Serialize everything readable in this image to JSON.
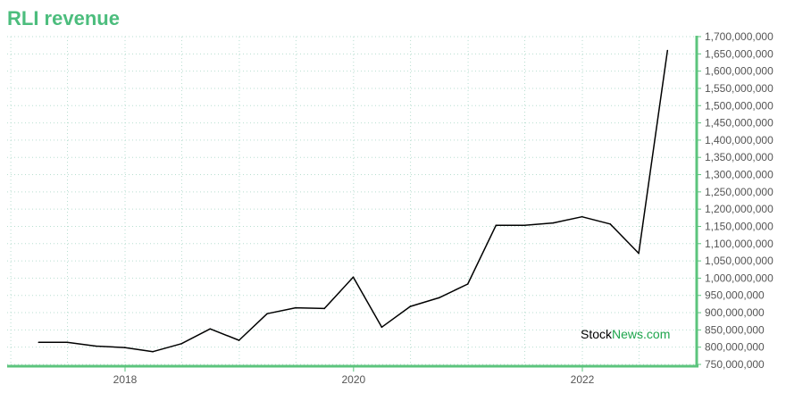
{
  "chart_data": {
    "type": "line",
    "title": "RLI revenue",
    "xlabel": "",
    "ylabel": "",
    "x_tick_labels": [
      "2018",
      "2020",
      "2022"
    ],
    "y_tick_labels": [
      "750,000,000",
      "800,000,000",
      "850,000,000",
      "900,000,000",
      "950,000,000",
      "1,000,000,000",
      "1,050,000,000",
      "1,100,000,000",
      "1,150,000,000",
      "1,200,000,000",
      "1,250,000,000",
      "1,300,000,000",
      "1,350,000,000",
      "1,400,000,000",
      "1,450,000,000",
      "1,500,000,000",
      "1,550,000,000",
      "1,600,000,000",
      "1,650,000,000",
      "1,700,000,000"
    ],
    "ylim": [
      750000000,
      1700000000
    ],
    "grid": true,
    "series": [
      {
        "color": "#000000",
        "x": [
          "2017-03-31",
          "2017-06-30",
          "2017-09-30",
          "2017-12-31",
          "2018-03-31",
          "2018-06-30",
          "2018-09-30",
          "2018-12-31",
          "2019-03-31",
          "2019-06-30",
          "2019-09-30",
          "2019-12-31",
          "2020-03-31",
          "2020-06-30",
          "2020-09-30",
          "2020-12-31",
          "2021-03-31",
          "2021-06-30",
          "2021-09-30",
          "2021-12-31",
          "2022-03-31",
          "2022-06-30",
          "2022-09-30"
        ],
        "values": [
          814000000,
          814000000,
          803000000,
          799000000,
          787000000,
          810000000,
          853000000,
          820000000,
          897000000,
          914000000,
          912000000,
          1003000000,
          858000000,
          918000000,
          943000000,
          983000000,
          1153000000,
          1153000000,
          1160000000,
          1178000000,
          1157000000,
          1072000000,
          1660000000
        ]
      }
    ]
  },
  "watermark": {
    "part1": "Stock",
    "part2": "News",
    "part3": ".com",
    "color1": "#000000",
    "color2": "#1ea54c",
    "color3": "#1ea54c"
  },
  "colors": {
    "accent": "#4cbd7d",
    "axis": "#5cc47d",
    "grid": "#b7ded0"
  }
}
